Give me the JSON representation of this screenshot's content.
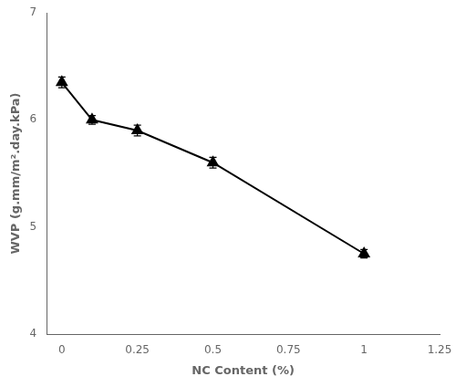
{
  "chart_data": {
    "type": "line",
    "x": [
      0,
      0.1,
      0.25,
      0.5,
      1.0
    ],
    "values": [
      6.35,
      6.0,
      5.9,
      5.6,
      4.75
    ],
    "yerr": [
      0.05,
      0.04,
      0.05,
      0.05,
      0.04
    ],
    "xlabel": "NC Content (%)",
    "ylabel": "WVP (g.mm/m².day.kPa)",
    "xlim": [
      -0.05,
      1.25
    ],
    "ylim": [
      4.0,
      7.0
    ],
    "xticks": [
      0,
      0.25,
      0.5,
      0.75,
      1.0,
      1.25
    ],
    "yticks": [
      4,
      5,
      6,
      7
    ],
    "color": "#000000",
    "marker": "triangle",
    "grid": false
  }
}
